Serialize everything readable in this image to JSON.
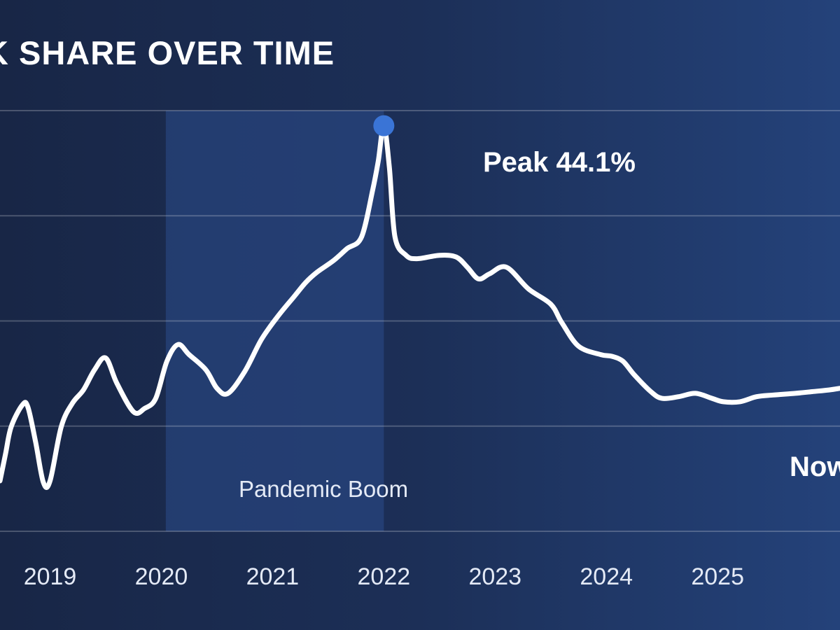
{
  "chart_data": {
    "type": "line",
    "title": "K SHARE OVER TIME",
    "xlabel": "",
    "ylabel": "",
    "x_ticks": [
      "2019",
      "2020",
      "2021",
      "2022",
      "2023",
      "2024",
      "2025"
    ],
    "xlim": [
      2018.55,
      2026.1
    ],
    "ylim": [
      20,
      45
    ],
    "grid": true,
    "legend": "none",
    "series": [
      {
        "name": "",
        "color": "#ffffff",
        "x": [
          2018.55,
          2018.6,
          2018.65,
          2018.75,
          2018.8,
          2018.87,
          2018.94,
          2019.0,
          2019.1,
          2019.2,
          2019.3,
          2019.4,
          2019.5,
          2019.6,
          2019.75,
          2019.85,
          2019.95,
          2020.05,
          2020.15,
          2020.25,
          2020.4,
          2020.5,
          2020.6,
          2020.75,
          2020.9,
          2021.05,
          2021.2,
          2021.3,
          2021.4,
          2021.55,
          2021.67,
          2021.8,
          2021.9,
          2021.95,
          2022.0,
          2022.05,
          2022.1,
          2022.2,
          2022.3,
          2022.5,
          2022.65,
          2022.75,
          2022.85,
          2022.95,
          2023.1,
          2023.3,
          2023.5,
          2023.6,
          2023.75,
          2023.95,
          2024.05,
          2024.15,
          2024.25,
          2024.4,
          2024.5,
          2024.65,
          2024.8,
          2024.95,
          2025.05,
          2025.2,
          2025.35,
          2025.5,
          2025.7,
          2025.85,
          2026.0,
          2026.1
        ],
        "values": [
          23.0,
          24.6,
          26.2,
          27.5,
          27.4,
          25.3,
          22.9,
          23.0,
          26.2,
          27.6,
          28.4,
          29.6,
          30.3,
          28.8,
          27.1,
          27.3,
          27.9,
          30.1,
          31.1,
          30.5,
          29.6,
          28.5,
          28.2,
          29.5,
          31.4,
          32.8,
          34.0,
          34.8,
          35.4,
          36.1,
          36.8,
          37.5,
          40.3,
          42.0,
          44.1,
          41.6,
          37.5,
          36.4,
          36.2,
          36.4,
          36.3,
          35.7,
          35.0,
          35.3,
          35.7,
          34.4,
          33.5,
          32.4,
          31.0,
          30.5,
          30.4,
          30.1,
          29.3,
          28.3,
          27.9,
          28.0,
          28.2,
          27.9,
          27.7,
          27.7,
          28.0,
          28.1,
          28.2,
          28.3,
          28.4,
          28.5
        ]
      }
    ],
    "peak": {
      "x": 2022.0,
      "y": 44.1,
      "label": "Peak 44.1%",
      "color": "#3a74d6"
    },
    "current_label": "Now",
    "shaded_region": {
      "x_start": 2020.04,
      "x_end": 2022.0,
      "label": "Pandemic Boom",
      "color": "#2b4d8c"
    }
  }
}
